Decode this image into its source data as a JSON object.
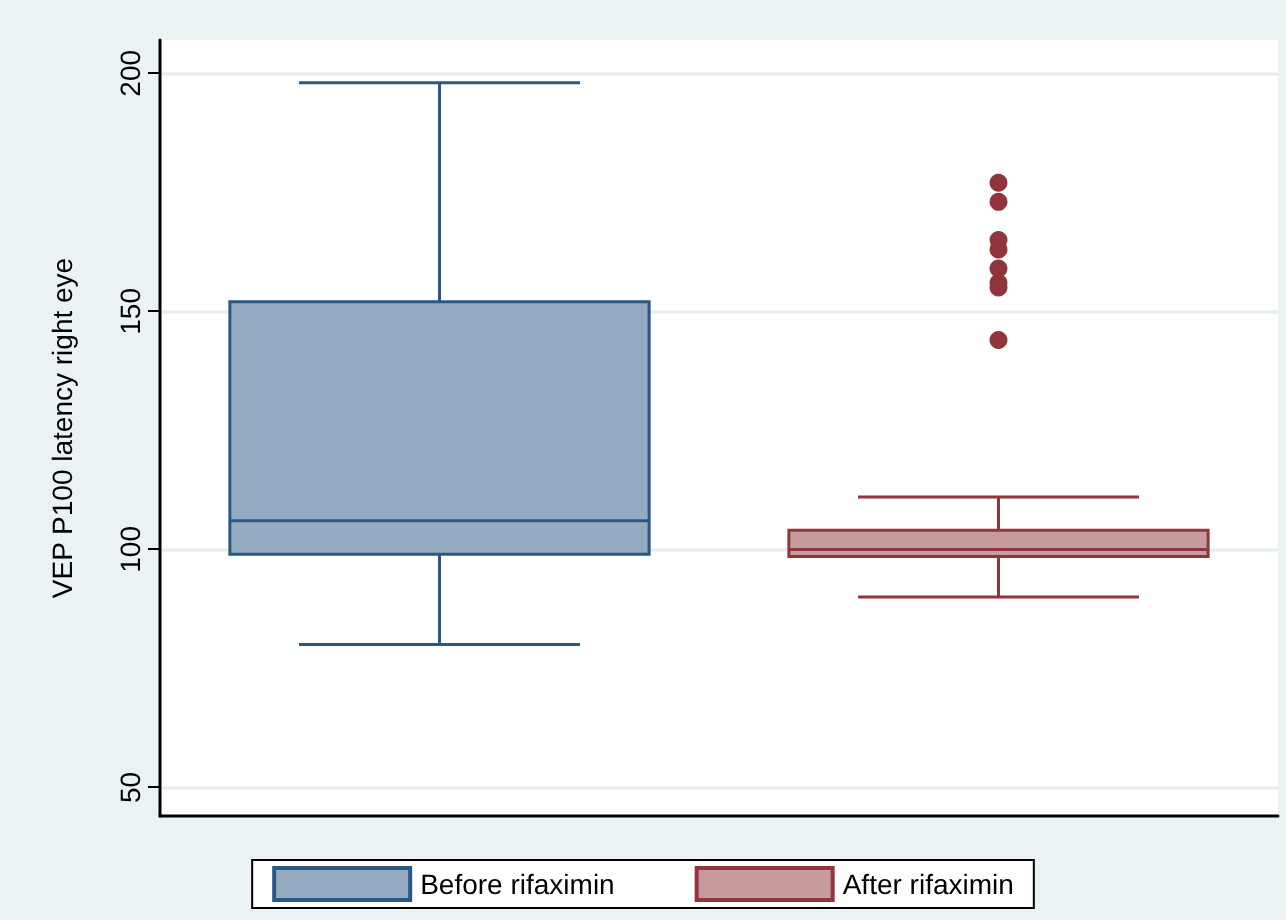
{
  "chart_data": {
    "type": "box",
    "ylabel": "VEP P100 latency right eye",
    "categories": [
      null
    ],
    "series": [
      {
        "name": "Before rifaximin",
        "color": "#2a5783",
        "boxes": [
          {
            "low": 80,
            "q1": 99,
            "median": 106,
            "q3": 152,
            "high": 198
          }
        ]
      },
      {
        "name": "After rifaximin",
        "color": "#90353b",
        "boxes": [
          {
            "low": 90,
            "q1": 98.5,
            "median": 100,
            "q3": 104,
            "high": 111,
            "outliers": [
              177,
              173,
              165,
              163,
              159,
              156,
              155,
              144
            ]
          }
        ]
      }
    ],
    "ylim": [
      44,
      207
    ],
    "yticks": [
      50,
      100,
      150,
      200
    ],
    "grid": "y",
    "legend": "bottom",
    "tick_labels": "y"
  }
}
